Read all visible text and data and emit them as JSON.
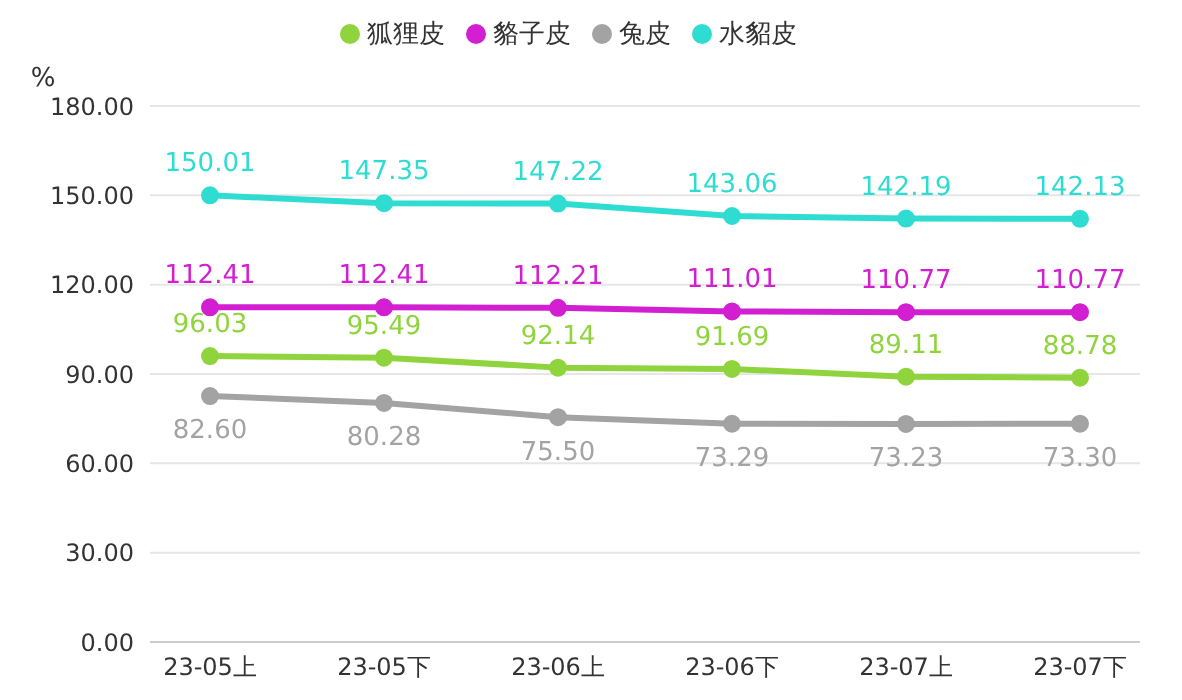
{
  "chart_data": {
    "type": "line",
    "ylabel": "%",
    "categories": [
      "23-05上",
      "23-05下",
      "23-06上",
      "23-06下",
      "23-07上",
      "23-07下"
    ],
    "series": [
      {
        "name": "狐狸皮",
        "color": "#8fd43c",
        "values": [
          96.03,
          95.49,
          92.14,
          91.69,
          89.11,
          88.78
        ],
        "value_labels": [
          "96.03",
          "95.49",
          "92.14",
          "91.69",
          "89.11",
          "88.78"
        ]
      },
      {
        "name": "貉子皮",
        "color": "#d11fd1",
        "values": [
          112.41,
          112.41,
          112.21,
          111.01,
          110.77,
          110.77
        ],
        "value_labels": [
          "112.41",
          "112.41",
          "112.21",
          "111.01",
          "110.77",
          "110.77"
        ]
      },
      {
        "name": "兔皮",
        "color": "#a3a3a3",
        "values": [
          82.6,
          80.28,
          75.5,
          73.29,
          73.23,
          73.3
        ],
        "value_labels": [
          "82.60",
          "80.28",
          "75.50",
          "73.29",
          "73.23",
          "73.30"
        ]
      },
      {
        "name": "水貂皮",
        "color": "#2fdcd2",
        "values": [
          150.01,
          147.35,
          147.22,
          143.06,
          142.19,
          142.13
        ],
        "value_labels": [
          "150.01",
          "147.35",
          "147.22",
          "143.06",
          "142.19",
          "142.13"
        ]
      }
    ],
    "ylim": [
      0,
      180
    ],
    "yticks": [
      {
        "value": 0,
        "label": "0.00"
      },
      {
        "value": 30,
        "label": "30.00"
      },
      {
        "value": 60,
        "label": "60.00"
      },
      {
        "value": 90,
        "label": "90.00"
      },
      {
        "value": 120,
        "label": "120.00"
      },
      {
        "value": 150,
        "label": "150.00"
      },
      {
        "value": 180,
        "label": "180.00"
      }
    ],
    "grid": "y",
    "legend": "top",
    "marker": "circle",
    "line_style": "solid"
  }
}
